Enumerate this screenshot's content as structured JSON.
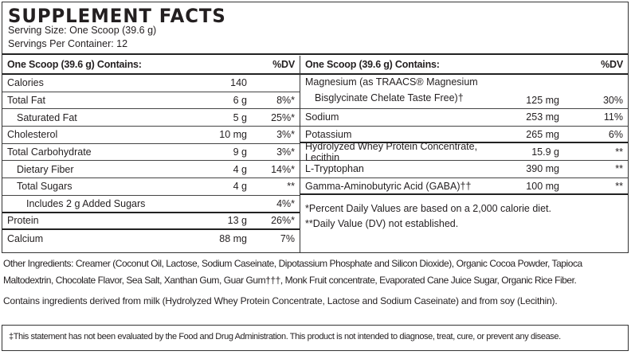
{
  "title": "SUPPLEMENT FACTS",
  "serving_size": "Serving Size: One Scoop (39.6 g)",
  "servings_per_container": "Servings Per Container: 12",
  "left": {
    "header": {
      "label": "One Scoop (39.6 g) Contains:",
      "dv": "%DV"
    },
    "rows": [
      {
        "name": "Calories",
        "amount": "140",
        "dv": "",
        "indent": 0,
        "line": "thin"
      },
      {
        "name": "Total Fat",
        "amount": "6 g",
        "dv": "8%*",
        "indent": 0,
        "line": "thin"
      },
      {
        "name": "Saturated Fat",
        "amount": "5 g",
        "dv": "25%*",
        "indent": 1,
        "line": "thin"
      },
      {
        "name": "Cholesterol",
        "amount": "10 mg",
        "dv": "3%*",
        "indent": 0,
        "line": "thin"
      },
      {
        "name": "Total Carbohydrate",
        "amount": "9 g",
        "dv": "3%*",
        "indent": 0,
        "line": "thin"
      },
      {
        "name": "Dietary Fiber",
        "amount": "4 g",
        "dv": "14%*",
        "indent": 1,
        "line": "thin"
      },
      {
        "name": "Total Sugars",
        "amount": "4 g",
        "dv": "**",
        "indent": 1,
        "line": "thin"
      },
      {
        "name": "Includes 2 g Added Sugars",
        "amount": "",
        "dv": "4%*",
        "indent": 2,
        "line": "thick"
      },
      {
        "name": "Protein",
        "amount": "13 g",
        "dv": "26%*",
        "indent": 0,
        "line": "thick"
      },
      {
        "name": "Calcium",
        "amount": "88 mg",
        "dv": "7%",
        "indent": 0,
        "line": "none"
      }
    ]
  },
  "right": {
    "header": {
      "label": "One Scoop (39.6 g) Contains:",
      "dv": "%DV"
    },
    "magnesium": {
      "line1": "Magnesium (as TRAACS® Magnesium",
      "line2": "Bisglycinate Chelate Taste Free)†",
      "amount": "125 mg",
      "dv": "30%"
    },
    "rows": [
      {
        "name": "Sodium",
        "amount": "253 mg",
        "dv": "11%",
        "line": "thin"
      },
      {
        "name": "Potassium",
        "amount": "265 mg",
        "dv": "6%",
        "line": "thick"
      },
      {
        "name": "Hydrolyzed Whey Protein Concentrate, Lecithin",
        "amount": "15.9 g",
        "dv": "**",
        "line": "thin"
      },
      {
        "name": "L-Tryptophan",
        "amount": "390 mg",
        "dv": "**",
        "line": "thin"
      },
      {
        "name": "Gamma-Aminobutyric Acid (GABA)††",
        "amount": "100 mg",
        "dv": "**",
        "line": "thick"
      }
    ],
    "footnotes": [
      "*Percent Daily Values are based on a 2,000 calorie diet.",
      "**Daily Value (DV) not established."
    ]
  },
  "other_ingredients_line1": "Other Ingredients: Creamer (Coconut Oil, Lactose, Sodium Caseinate, Dipotassium Phosphate and Silicon Dioxide), Organic Cocoa Powder, Tapioca",
  "other_ingredients_line2": "Maltodextrin, Chocolate Flavor, Sea Salt, Xanthan Gum, Guar Gum†††, Monk Fruit concentrate, Evaporated Cane Juice Sugar, Organic Rice Fiber.",
  "allergen": "Contains ingredients derived from milk (Hydrolyzed Whey Protein Concentrate, Lactose and Sodium Caseinate) and from soy (Lecithin).",
  "disclaimer": "‡This statement has not been evaluated by the Food and Drug Administration. This product is not intended to diagnose, treat, cure, or prevent any disease."
}
